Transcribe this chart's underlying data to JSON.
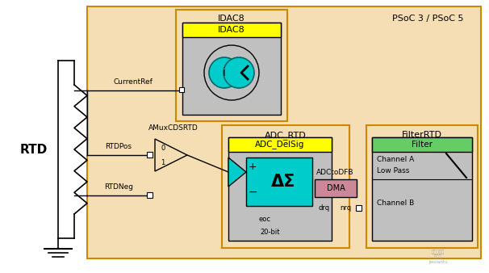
{
  "bg_color": "#f5deb3",
  "outer_bg": "#ffffff",
  "title_psoc": "PSoC 3 / PSoC 5",
  "title_idac8_block": "IDAC8",
  "title_adc_rtd": "ADC_RTD",
  "title_filter": "FilterRTD",
  "label_idac8": "IDAC8",
  "label_adc": "ADC_DelSig",
  "label_filter": "Filter",
  "label_rtd": "RTD",
  "label_currentref": "CurrentRef",
  "label_amux": "AMuxCDSRTD",
  "label_rtdpos": "RTDPos",
  "label_rtdneg": "RTDNeg",
  "label_adctodfb": "ADCtoDFB",
  "label_dma": "DMA",
  "label_eoc": "eoc",
  "label_drq": "drq",
  "label_nrq": "nrq",
  "label_20bit": "20-bit",
  "label_channel_a": "Channel A",
  "label_low_pass": "Low Pass",
  "label_channel_b": "Channel B",
  "color_yellow": "#ffff00",
  "color_cyan": "#00cccc",
  "color_green": "#66cc66",
  "color_pink": "#cc8899",
  "color_gray": "#c0c0c0",
  "color_darkgray": "#808080",
  "color_orange_border": "#cc8800"
}
